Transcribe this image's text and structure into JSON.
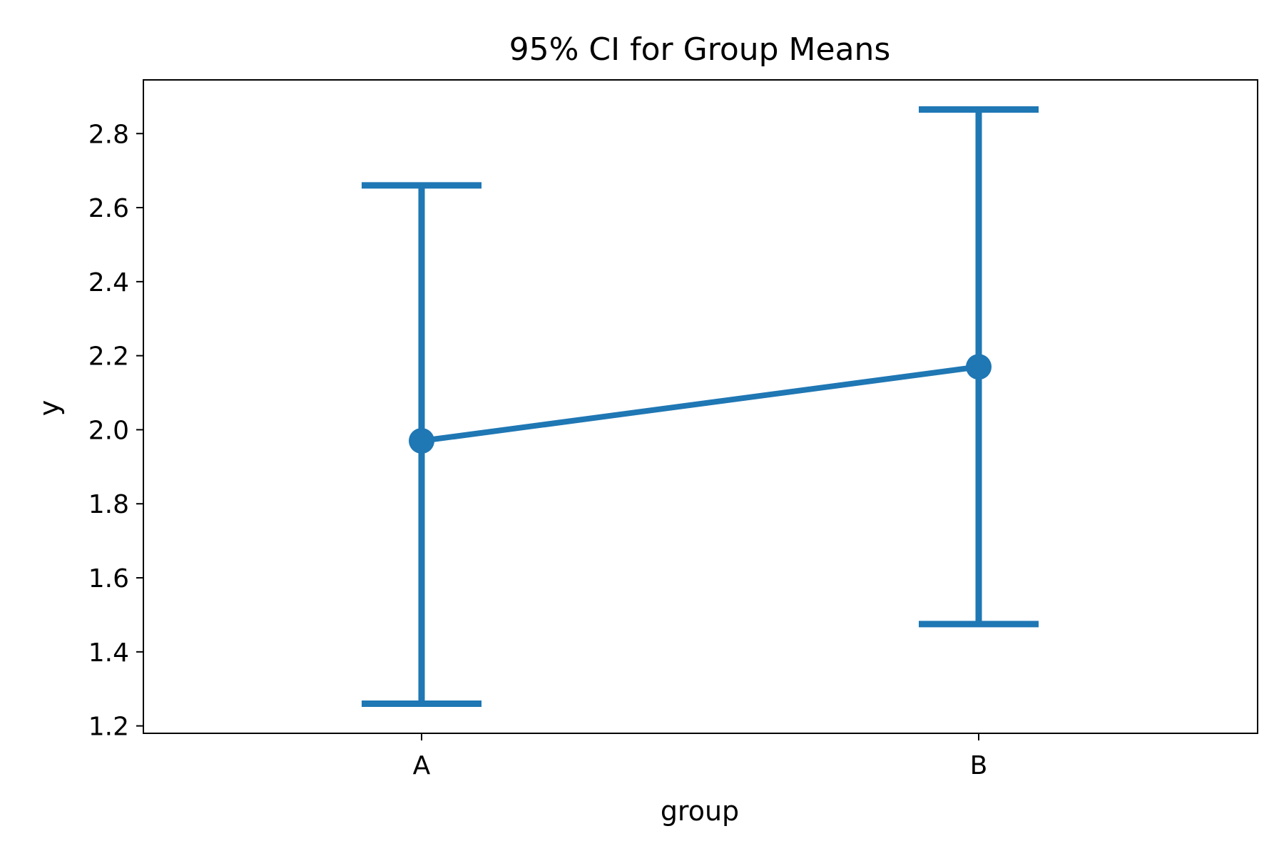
{
  "chart_data": {
    "type": "line",
    "title": "95% CI for Group Means",
    "xlabel": "group",
    "ylabel": "y",
    "categories": [
      "A",
      "B"
    ],
    "series": [
      {
        "values": [
          1.97,
          2.17
        ],
        "ci_low": [
          1.26,
          1.475
        ],
        "ci_high": [
          2.66,
          2.865
        ],
        "color": "#1f77b4"
      }
    ],
    "ylim": [
      1.18,
      2.945
    ],
    "yticks": [
      1.2,
      1.4,
      1.6,
      1.8,
      2.0,
      2.2,
      2.4,
      2.6,
      2.8
    ],
    "ytick_labels": [
      "1.2",
      "1.4",
      "1.6",
      "1.8",
      "2.0",
      "2.2",
      "2.4",
      "2.6",
      "2.8"
    ],
    "grid": false
  }
}
